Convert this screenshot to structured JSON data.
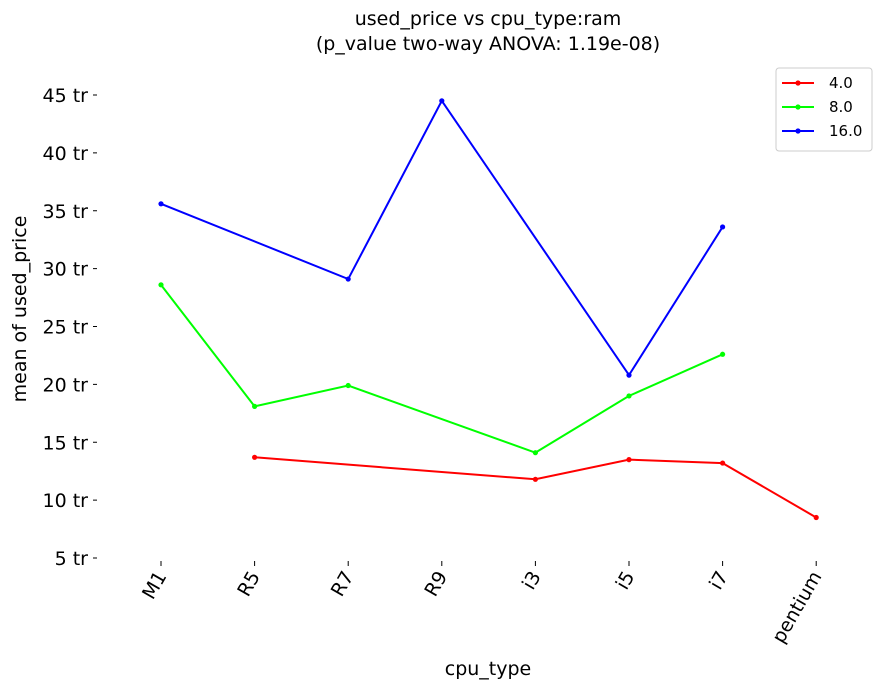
{
  "chart_data": {
    "type": "line",
    "title": "used_price vs cpu_type:ram",
    "subtitle": "(p_value two-way ANOVA: 1.19e-08)",
    "xlabel": "cpu_type",
    "ylabel": "mean of used_price",
    "categories": [
      "M1",
      "R5",
      "R7",
      "R9",
      "i3",
      "i5",
      "i7",
      "pentium"
    ],
    "yticks": [
      {
        "value": 5,
        "label": "5 tr"
      },
      {
        "value": 10,
        "label": "10 tr"
      },
      {
        "value": 15,
        "label": "15 tr"
      },
      {
        "value": 20,
        "label": "20 tr"
      },
      {
        "value": 25,
        "label": "25 tr"
      },
      {
        "value": 30,
        "label": "30 tr"
      },
      {
        "value": 35,
        "label": "35 tr"
      },
      {
        "value": 40,
        "label": "40 tr"
      },
      {
        "value": 45,
        "label": "45 tr"
      }
    ],
    "ylim": [
      5,
      45
    ],
    "grid": false,
    "legend_position": "top-right",
    "series": [
      {
        "name": "4.0",
        "color": "#ff0000",
        "values": [
          null,
          13.7,
          null,
          null,
          11.8,
          13.5,
          13.2,
          8.5
        ]
      },
      {
        "name": "8.0",
        "color": "#00ff00",
        "values": [
          28.6,
          18.1,
          19.9,
          null,
          14.1,
          19.0,
          22.6,
          null
        ]
      },
      {
        "name": "16.0",
        "color": "#0000ff",
        "values": [
          35.6,
          null,
          29.1,
          44.5,
          null,
          20.8,
          33.6,
          null
        ]
      }
    ]
  }
}
